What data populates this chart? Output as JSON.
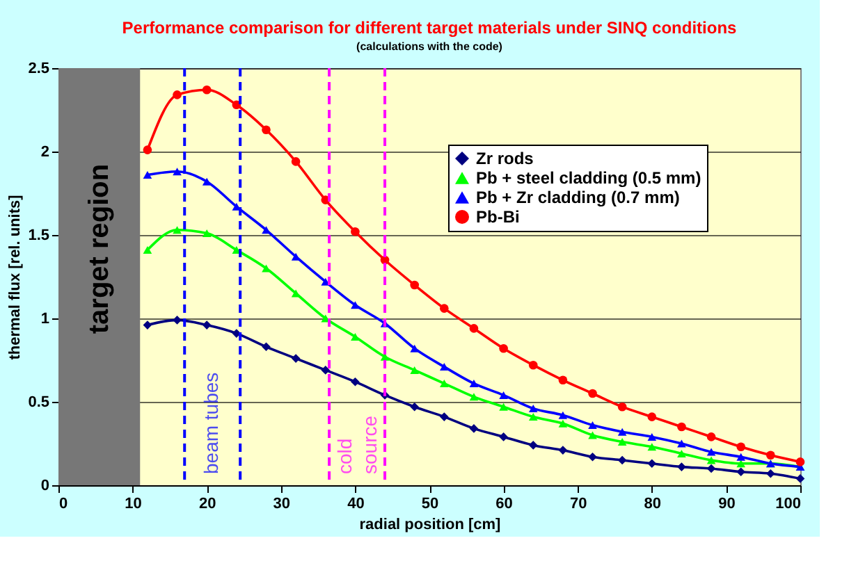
{
  "chart_data": {
    "type": "line",
    "title": "Performance comparison for different target materials under SINQ conditions",
    "subtitle": "(calculations with the code)",
    "xlabel": "radial position [cm]",
    "ylabel": "thermal flux [rel. units]",
    "x": [
      12,
      16,
      20,
      24,
      28,
      32,
      36,
      40,
      44,
      48,
      52,
      56,
      60,
      64,
      68,
      72,
      76,
      80,
      84,
      88,
      92,
      96,
      100
    ],
    "series": [
      {
        "name": "Zr rods",
        "color": "#000080",
        "marker": "diamond",
        "values": [
          0.96,
          0.99,
          0.96,
          0.91,
          0.83,
          0.76,
          0.69,
          0.62,
          0.54,
          0.47,
          0.41,
          0.34,
          0.29,
          0.24,
          0.21,
          0.17,
          0.15,
          0.13,
          0.11,
          0.1,
          0.08,
          0.07,
          0.04
        ]
      },
      {
        "name": "Pb + steel cladding (0.5 mm)",
        "color": "#00ff00",
        "marker": "triangle",
        "values": [
          1.41,
          1.53,
          1.51,
          1.41,
          1.3,
          1.15,
          1.0,
          0.89,
          0.77,
          0.69,
          0.61,
          0.53,
          0.47,
          0.41,
          0.37,
          0.3,
          0.26,
          0.23,
          0.19,
          0.15,
          0.13,
          0.13,
          0.11
        ]
      },
      {
        "name": "Pb + Zr cladding (0.7 mm)",
        "color": "#0000ff",
        "marker": "triangle",
        "values": [
          1.86,
          1.88,
          1.82,
          1.67,
          1.53,
          1.37,
          1.22,
          1.08,
          0.97,
          0.82,
          0.71,
          0.61,
          0.54,
          0.46,
          0.42,
          0.36,
          0.32,
          0.29,
          0.25,
          0.2,
          0.17,
          0.13,
          0.11
        ]
      },
      {
        "name": "Pb-Bi",
        "color": "#ff0000",
        "marker": "circle",
        "values": [
          2.01,
          2.34,
          2.37,
          2.28,
          2.13,
          1.94,
          1.71,
          1.52,
          1.35,
          1.2,
          1.06,
          0.94,
          0.82,
          0.72,
          0.63,
          0.55,
          0.47,
          0.41,
          0.35,
          0.29,
          0.23,
          0.18,
          0.14
        ]
      }
    ],
    "xlim": [
      0,
      100
    ],
    "xticks": [
      0,
      10,
      20,
      30,
      40,
      50,
      60,
      70,
      80,
      90,
      100
    ],
    "ylim": [
      0,
      2.5
    ],
    "yticks": [
      {
        "value": 0,
        "label": "0"
      },
      0.5,
      {
        "value": 1,
        "label": "1"
      },
      1.5,
      {
        "value": 2,
        "label": "2"
      },
      2.5
    ],
    "grid": "y",
    "legend": "top right",
    "line_style": "solid",
    "bands": [
      {
        "axis": "x",
        "from": 0,
        "to": 11,
        "label": "target region",
        "color": "#777777"
      }
    ],
    "ref_lines": [
      {
        "axis": "x",
        "value": 17,
        "color": "#0000ff",
        "line_style": "dashed"
      },
      {
        "axis": "x",
        "value": 24.5,
        "color": "#0000ff",
        "line_style": "dashed"
      },
      {
        "axis": "x",
        "value": 36.5,
        "color": "#ff00ff",
        "line_style": "dashed"
      },
      {
        "axis": "x",
        "value": 44,
        "color": "#ff00ff",
        "line_style": "dashed"
      }
    ],
    "annotations": [
      "beam tubes",
      "cold",
      "source"
    ]
  }
}
